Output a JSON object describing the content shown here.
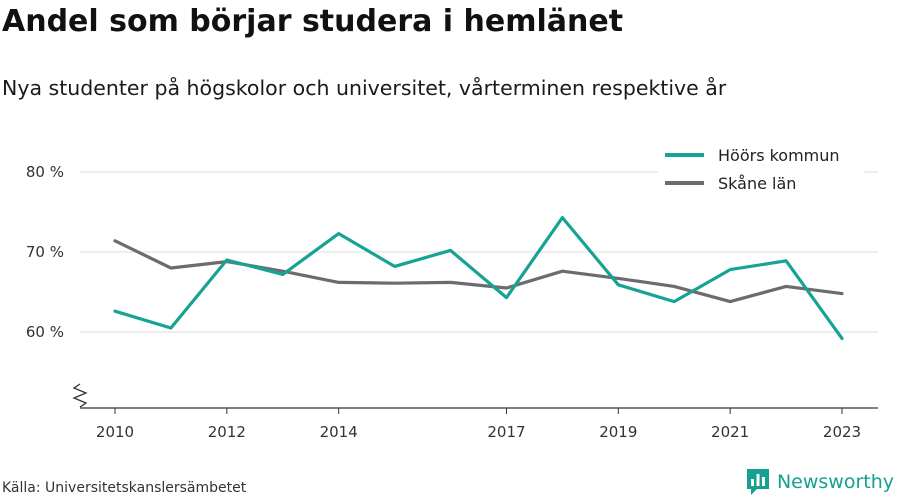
{
  "title": "Andel som börjar studera i hemlänet",
  "subtitle": "Nya studenter på högskolor och universitet, vårterminen respektive år",
  "source": "Källa: Universitetskanslersämbetet",
  "brand": {
    "name": "Newsworthy",
    "icon": "bar-chart-logo-icon"
  },
  "colors": {
    "hoor": "#16a394",
    "skane": "#6c6b70",
    "grid": "#dddddd",
    "axis": "#333333",
    "brand": "#16a08f"
  },
  "chart_data": {
    "type": "line",
    "title": "Andel som börjar studera i hemlänet",
    "subtitle": "Nya studenter på högskolor och universitet, vårterminen respektive år",
    "x": [
      2010,
      2011,
      2012,
      2013,
      2014,
      2015,
      2016,
      2017,
      2018,
      2019,
      2020,
      2021,
      2022,
      2023
    ],
    "x_tick_labels": [
      "2010",
      "2012",
      "2014",
      "2017",
      "2019",
      "2021",
      "2023"
    ],
    "y_ticks": [
      60,
      70,
      80
    ],
    "y_tick_labels": [
      "60 %",
      "70 %",
      "80 %"
    ],
    "ylim": [
      50,
      80
    ],
    "y_axis_break": true,
    "grid": true,
    "legend_position": "top-right",
    "series": [
      {
        "name": "Höörs kommun",
        "color": "#16a394",
        "values": [
          62.6,
          60.5,
          69.0,
          67.2,
          72.3,
          68.2,
          70.2,
          64.3,
          74.3,
          65.9,
          63.8,
          67.8,
          68.9,
          59.2
        ]
      },
      {
        "name": "Skåne län",
        "color": "#6c6b70",
        "values": [
          71.4,
          68.0,
          68.8,
          67.6,
          66.2,
          66.1,
          66.2,
          65.5,
          67.6,
          66.7,
          65.7,
          63.8,
          65.7,
          64.8
        ]
      }
    ]
  }
}
